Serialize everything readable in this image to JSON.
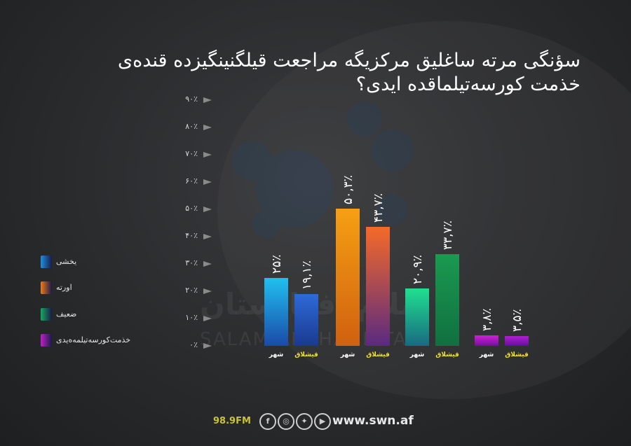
{
  "title_lines": [
    "سؤنگی مرته ساغلیق مرکزیگه مراجعت قیلگنینگیزده قنده‌ی",
    "خذمت کورسه‌تیلماقده ایدی؟"
  ],
  "footer": {
    "frequency": "98.9FM",
    "icons": [
      "facebook-icon",
      "instagram-icon",
      "twitter-icon",
      "youtube-icon"
    ],
    "website": "www.swn.af"
  },
  "watermark": {
    "text": "سلام افغانستان",
    "latin": "SALAM AFGHANISTAN"
  },
  "chart_data": {
    "type": "bar",
    "yticks": [
      "۰٪",
      "۱۰٪",
      "۲۰٪",
      "۳۰٪",
      "۴۰٪",
      "۵۰٪",
      "۶۰٪",
      "۷۰٪",
      "۸۰٪",
      "۹۰٪"
    ],
    "ylim": [
      0,
      90
    ],
    "legend": [
      {
        "name": "یخشی",
        "color": "#1e90e0"
      },
      {
        "name": "اورته",
        "color": "#f07a1a"
      },
      {
        "name": "ضعیف",
        "color": "#18a860"
      },
      {
        "name": "خذمت‌کورسه‌تیلمه‌ه‌یدی",
        "color": "#c020c8"
      }
    ],
    "bars": [
      {
        "group": "یخشی",
        "category": "شهر",
        "value": 25,
        "label": "۲۵٪",
        "colors": [
          "#20c0f0",
          "#1a4aa8"
        ]
      },
      {
        "group": "یخشی",
        "category": "قیشلاق",
        "value": 19.1,
        "label": "۱۹,۱٪",
        "colors": [
          "#2e6ad8",
          "#1a3a90"
        ]
      },
      {
        "group": "اورته",
        "category": "شهر",
        "value": 50.3,
        "label": "۵۰,۳٪",
        "colors": [
          "#f5a012",
          "#d06010"
        ]
      },
      {
        "group": "اورته",
        "category": "قیشلاق",
        "value": 43.7,
        "label": "۴۳,۷٪",
        "colors": [
          "#f56a28",
          "#5a2a80"
        ]
      },
      {
        "group": "ضعیف",
        "category": "شهر",
        "value": 20.9,
        "label": "۲۰,۹٪",
        "colors": [
          "#20e090",
          "#186a80"
        ]
      },
      {
        "group": "ضعیف",
        "category": "قیشلاق",
        "value": 33.7,
        "label": "۳۳,۷٪",
        "colors": [
          "#1a9a50",
          "#107040"
        ]
      },
      {
        "group": "خذمت‌کورسه‌تیلمه‌ه‌یدی",
        "category": "شهر",
        "value": 3.8,
        "label": "۳,۸٪",
        "colors": [
          "#d020d8",
          "#7010a0"
        ]
      },
      {
        "group": "خذمت‌کورسه‌تیلمه‌ه‌یدی",
        "category": "قیشلاق",
        "value": 3.5,
        "label": "۳,۵٪",
        "colors": [
          "#b020d0",
          "#6010a0"
        ]
      }
    ],
    "category_colors": {
      "شهر": "#ffffff",
      "قیشلاق": "#f0e030"
    }
  }
}
